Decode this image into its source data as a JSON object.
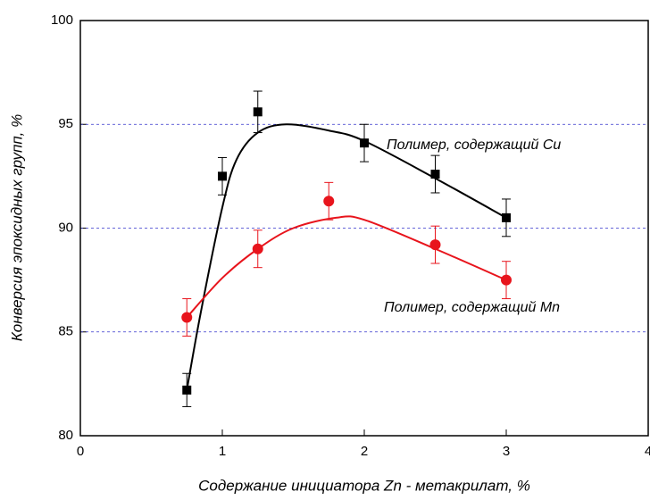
{
  "chart_data": {
    "type": "scatter",
    "xlabel": "Содержание инициатора Zn - метакрилат, %",
    "ylabel": "Конверсия эпоксидных групп, %",
    "xlim": [
      0,
      4
    ],
    "xticks": [
      0,
      1,
      2,
      3,
      4
    ],
    "ylim": [
      80,
      100
    ],
    "yticks": [
      80,
      85,
      90,
      95,
      100
    ],
    "grid": true,
    "grid_color": "#3333cc",
    "series": [
      {
        "name": "Полимер, содержащий Cu",
        "color": "#000000",
        "marker": "square",
        "x": [
          0.75,
          1.0,
          1.25,
          2.0,
          2.5,
          3.0
        ],
        "values": [
          82.2,
          92.5,
          95.6,
          94.1,
          92.6,
          90.5
        ],
        "errors": [
          0.8,
          0.9,
          1.0,
          0.9,
          0.9,
          0.9
        ],
        "fit_x": [
          0.75,
          0.85,
          1.0,
          1.1,
          1.25,
          1.45,
          1.75,
          2.0,
          2.5,
          3.0
        ],
        "fit_values": [
          82.2,
          86.0,
          91.0,
          93.3,
          94.6,
          95.0,
          94.7,
          94.2,
          92.4,
          90.5
        ]
      },
      {
        "name": "Полимер, содержащий Mn",
        "color": "#e8141c",
        "marker": "circle",
        "x": [
          0.75,
          1.25,
          1.75,
          2.5,
          3.0
        ],
        "values": [
          85.7,
          89.0,
          91.3,
          89.2,
          87.5
        ],
        "errors": [
          0.9,
          0.9,
          0.9,
          0.9,
          0.9
        ],
        "fit_x": [
          0.75,
          1.0,
          1.25,
          1.5,
          1.8,
          2.0,
          2.5,
          3.0
        ],
        "fit_values": [
          85.7,
          87.6,
          89.0,
          90.0,
          90.5,
          90.4,
          89.0,
          87.5
        ]
      }
    ]
  }
}
